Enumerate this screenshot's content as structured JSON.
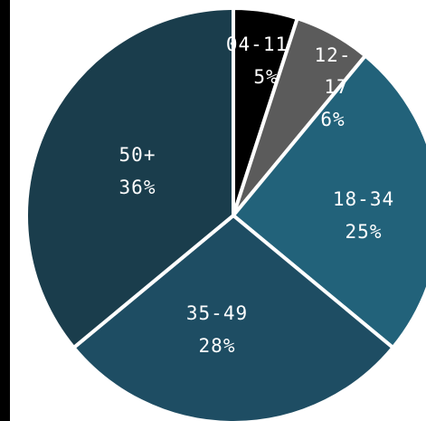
{
  "chart_data": {
    "type": "pie",
    "slices": [
      {
        "category": "04-11",
        "value": 5,
        "label": "5%",
        "color": "#000000"
      },
      {
        "category": "12-17",
        "value": 6,
        "label": "6%",
        "color": "#5b5b5b"
      },
      {
        "category": "18-34",
        "value": 25,
        "label": "25%",
        "color": "#22627a"
      },
      {
        "category": "35-49",
        "value": 28,
        "label": "28%",
        "color": "#1e4d63"
      },
      {
        "category": "50+",
        "value": 36,
        "label": "36%",
        "color": "#1a3d4c"
      }
    ],
    "start_angle_deg": 0,
    "direction": "clockwise",
    "separator_color": "#ffffff",
    "frame_color": "#000000"
  }
}
